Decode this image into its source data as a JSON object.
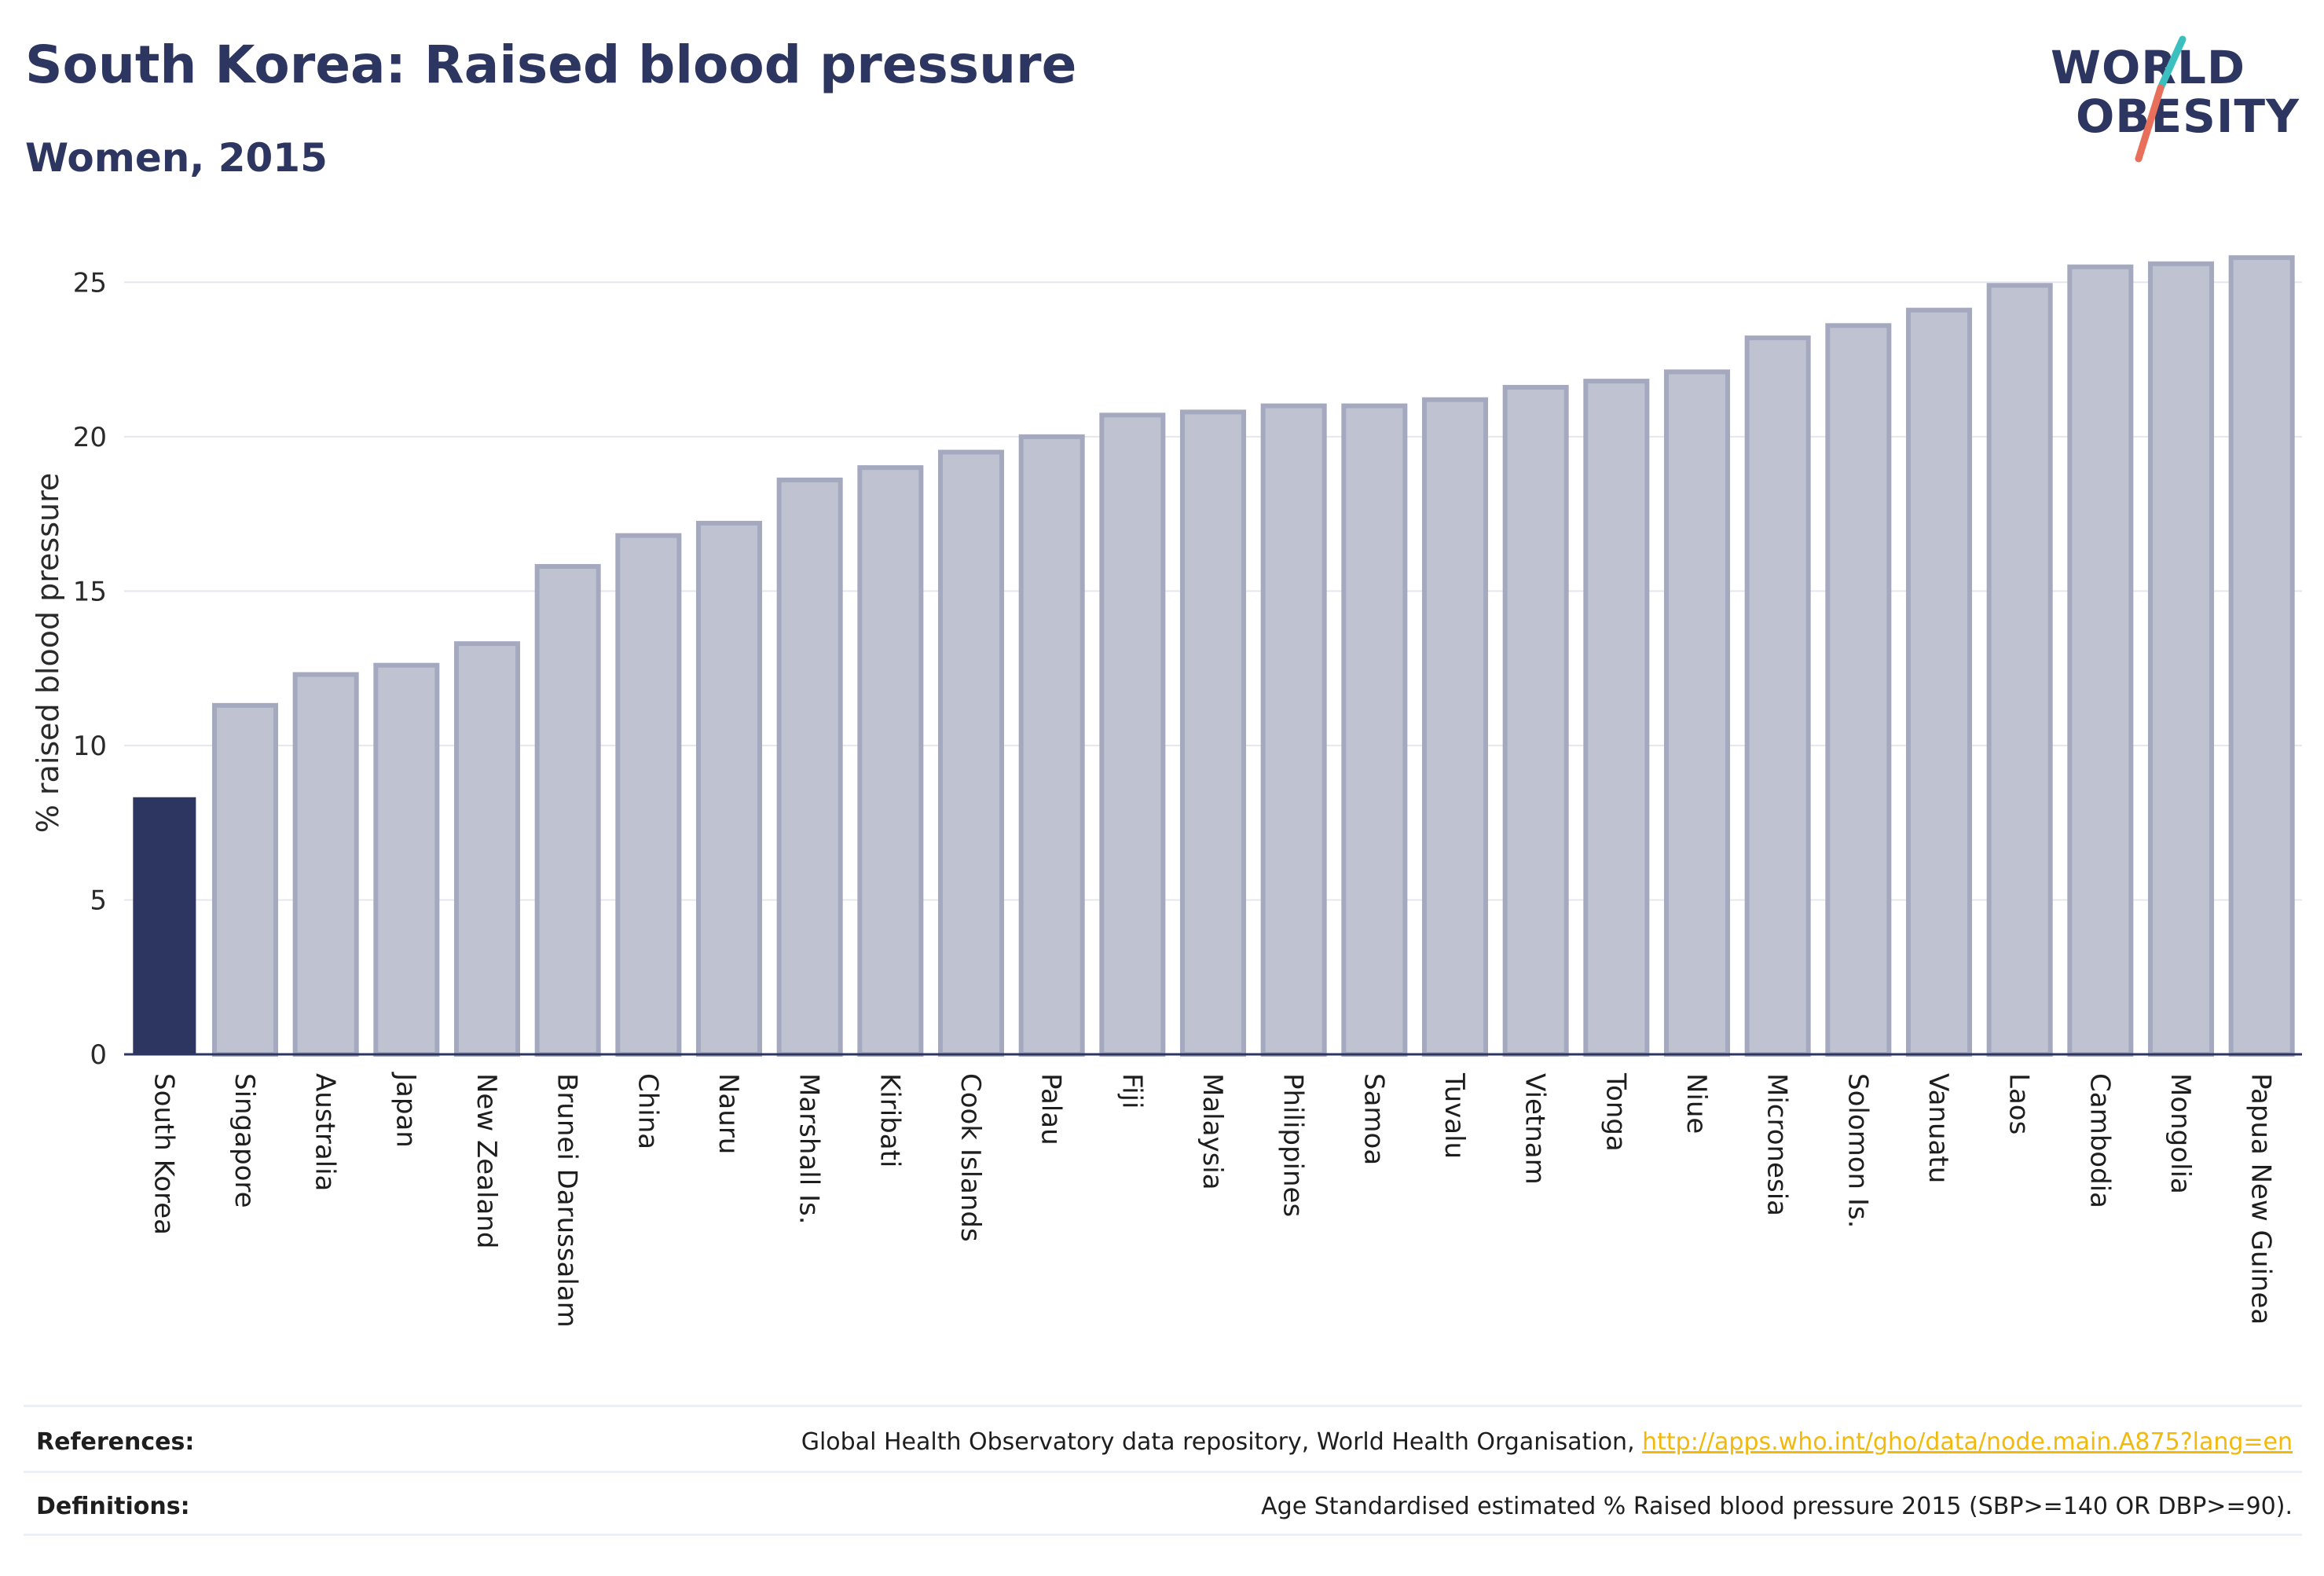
{
  "header": {
    "title": "South Korea: Raised blood pressure",
    "subtitle": "Women, 2015"
  },
  "logo": {
    "line1": "WORLD",
    "line2": "OBESITY",
    "slash_colors": [
      "#3cbfbf",
      "#e8705a"
    ]
  },
  "chart_data": {
    "type": "bar",
    "title": "South Korea: Raised blood pressure",
    "subtitle": "Women, 2015",
    "xlabel": "",
    "ylabel": "% raised blood pressure",
    "ylim": [
      0,
      26
    ],
    "yticks": [
      0,
      5,
      10,
      15,
      20,
      25
    ],
    "grid": "horizontal",
    "highlight_color": "#2d3660",
    "bar_color": "#bfc2d0",
    "bar_border_color": "#a5a9c0",
    "categories": [
      "South Korea",
      "Singapore",
      "Australia",
      "Japan",
      "New Zealand",
      "Brunei Darussalam",
      "China",
      "Nauru",
      "Marshall Is.",
      "Kiribati",
      "Cook Islands",
      "Palau",
      "Fiji",
      "Malaysia",
      "Philippines",
      "Samoa",
      "Tuvalu",
      "Vietnam",
      "Tonga",
      "Niue",
      "Micronesia",
      "Solomon Is.",
      "Vanuatu",
      "Laos",
      "Cambodia",
      "Mongolia",
      "Papua New Guinea"
    ],
    "values": [
      8.3,
      11.3,
      12.3,
      12.6,
      13.3,
      15.8,
      16.8,
      17.2,
      18.6,
      19.0,
      19.5,
      20.0,
      20.7,
      20.8,
      21.0,
      21.0,
      21.2,
      21.6,
      21.8,
      22.1,
      23.2,
      23.6,
      24.1,
      24.9,
      25.5,
      25.6,
      25.8
    ],
    "highlight_index": 0
  },
  "footer": {
    "references_label": "References:",
    "references_text": "Global Health Observatory data repository, World Health Organisation, ",
    "references_link": "http://apps.who.int/gho/data/node.main.A875?lang=en",
    "definitions_label": "Definitions:",
    "definitions_text": "Age Standardised estimated % Raised blood pressure 2015 (SBP>=140 OR DBP>=90)."
  }
}
